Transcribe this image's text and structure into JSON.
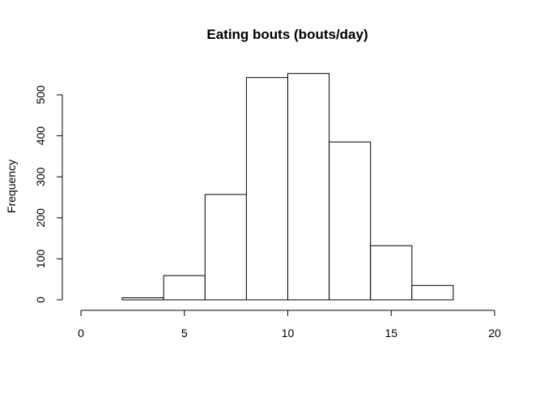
{
  "chart_data": {
    "type": "bar",
    "title": "Eating bouts (bouts/day)",
    "xlabel": "",
    "ylabel": "Frequency",
    "xlim": [
      0,
      20
    ],
    "ylim": [
      0,
      550
    ],
    "x_ticks": [
      0,
      5,
      10,
      15,
      20
    ],
    "y_ticks": [
      0,
      100,
      200,
      300,
      400,
      500
    ],
    "bins": [
      {
        "x0": 0,
        "x1": 2,
        "value": 0
      },
      {
        "x0": 2,
        "x1": 4,
        "value": 5
      },
      {
        "x0": 4,
        "x1": 6,
        "value": 59
      },
      {
        "x0": 6,
        "x1": 8,
        "value": 257
      },
      {
        "x0": 8,
        "x1": 10,
        "value": 542
      },
      {
        "x0": 10,
        "x1": 12,
        "value": 552
      },
      {
        "x0": 12,
        "x1": 14,
        "value": 385
      },
      {
        "x0": 14,
        "x1": 16,
        "value": 132
      },
      {
        "x0": 16,
        "x1": 18,
        "value": 35
      },
      {
        "x0": 18,
        "x1": 20,
        "value": 0
      }
    ],
    "bar_fill": "#ffffff",
    "bar_stroke": "#000000",
    "grid": false,
    "legend": "none"
  }
}
